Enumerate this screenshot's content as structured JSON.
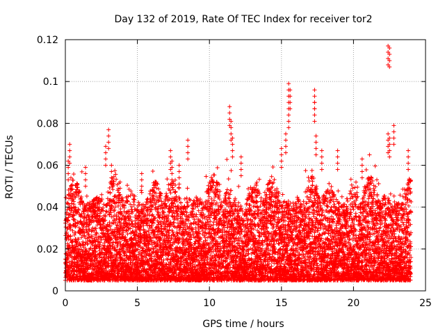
{
  "chart_data": {
    "type": "scatter",
    "title": "Day 132 of 2019, Rate Of TEC Index for receiver tor2",
    "xlabel": "GPS time / hours",
    "ylabel": "ROTI / TECUs",
    "xlim": [
      0,
      25
    ],
    "ylim": [
      0,
      0.12
    ],
    "x_ticks": [
      0,
      5,
      10,
      15,
      20,
      25
    ],
    "x_tick_labels": [
      "0",
      "5",
      "10",
      "15",
      "20",
      "25"
    ],
    "y_ticks": [
      0,
      0.02,
      0.04,
      0.06,
      0.08,
      0.1,
      0.12
    ],
    "y_tick_labels": [
      "0",
      "0.02",
      "0.04",
      "0.06",
      "0.08",
      "0.1",
      "0.12"
    ],
    "grid": true,
    "marker": "+",
    "color": "#ff0000",
    "series": [
      {
        "name": "ROTI",
        "x_range": [
          0,
          24
        ],
        "typical_range": [
          0.005,
          0.035
        ],
        "notable_points": [
          {
            "x": 0.2,
            "y": 0.062
          },
          {
            "x": 0.3,
            "y": 0.07
          },
          {
            "x": 1.4,
            "y": 0.059
          },
          {
            "x": 2.8,
            "y": 0.069
          },
          {
            "x": 3.0,
            "y": 0.077
          },
          {
            "x": 3.2,
            "y": 0.06
          },
          {
            "x": 3.8,
            "y": 0.052
          },
          {
            "x": 5.3,
            "y": 0.056
          },
          {
            "x": 7.3,
            "y": 0.067
          },
          {
            "x": 7.4,
            "y": 0.062
          },
          {
            "x": 7.9,
            "y": 0.06
          },
          {
            "x": 8.5,
            "y": 0.072
          },
          {
            "x": 11.4,
            "y": 0.088
          },
          {
            "x": 11.5,
            "y": 0.081
          },
          {
            "x": 11.6,
            "y": 0.073
          },
          {
            "x": 12.2,
            "y": 0.064
          },
          {
            "x": 15.0,
            "y": 0.068
          },
          {
            "x": 15.3,
            "y": 0.075
          },
          {
            "x": 15.5,
            "y": 0.099
          },
          {
            "x": 15.6,
            "y": 0.096
          },
          {
            "x": 15.5,
            "y": 0.087
          },
          {
            "x": 17.3,
            "y": 0.096
          },
          {
            "x": 17.3,
            "y": 0.09
          },
          {
            "x": 17.4,
            "y": 0.074
          },
          {
            "x": 17.8,
            "y": 0.067
          },
          {
            "x": 18.9,
            "y": 0.067
          },
          {
            "x": 20.6,
            "y": 0.063
          },
          {
            "x": 22.4,
            "y": 0.117
          },
          {
            "x": 22.5,
            "y": 0.116
          },
          {
            "x": 22.4,
            "y": 0.075
          },
          {
            "x": 22.5,
            "y": 0.073
          },
          {
            "x": 22.8,
            "y": 0.079
          },
          {
            "x": 23.8,
            "y": 0.067
          }
        ]
      }
    ]
  }
}
